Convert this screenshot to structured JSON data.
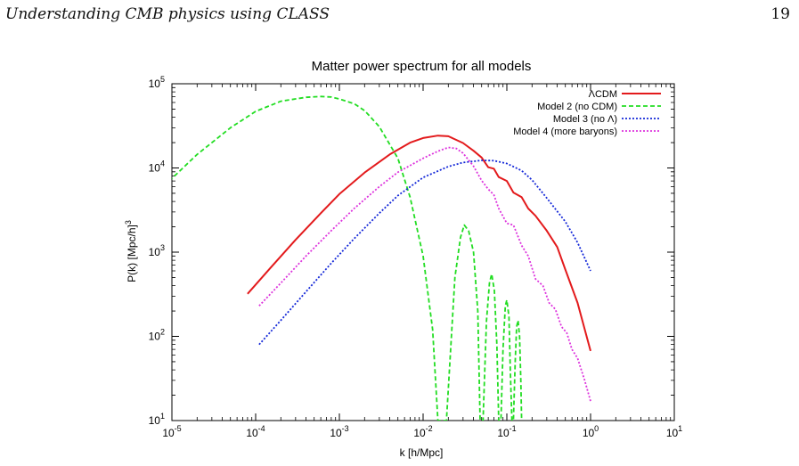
{
  "page": {
    "running_head": "Understanding CMB physics using CLASS",
    "page_number": "19"
  },
  "chart_data": {
    "type": "line",
    "title": "Matter power spectrum for all models",
    "xlabel": "k [h/Mpc]",
    "ylabel": "P(k) [Mpc/h]",
    "ylabel_superscript": "3",
    "xscale": "log",
    "yscale": "log",
    "xlim": [
      1e-05,
      10
    ],
    "ylim": [
      10,
      100000
    ],
    "x_ticks": [
      {
        "value": 1e-05,
        "base": "10",
        "exp": "-5"
      },
      {
        "value": 0.0001,
        "base": "10",
        "exp": "-4"
      },
      {
        "value": 0.001,
        "base": "10",
        "exp": "-3"
      },
      {
        "value": 0.01,
        "base": "10",
        "exp": "-2"
      },
      {
        "value": 0.1,
        "base": "10",
        "exp": "-1"
      },
      {
        "value": 1,
        "base": "10",
        "exp": "0"
      },
      {
        "value": 10,
        "base": "10",
        "exp": "1"
      }
    ],
    "y_ticks": [
      {
        "value": 10,
        "base": "10",
        "exp": "1"
      },
      {
        "value": 100,
        "base": "10",
        "exp": "2"
      },
      {
        "value": 1000,
        "base": "10",
        "exp": "3"
      },
      {
        "value": 10000,
        "base": "10",
        "exp": "4"
      },
      {
        "value": 100000,
        "base": "10",
        "exp": "5"
      }
    ],
    "grid": false,
    "legend_position": "top-right",
    "series": [
      {
        "name": "ΛCDM",
        "color": "#e31a1c",
        "dash": "solid",
        "points": [
          [
            8e-05,
            320
          ],
          [
            0.00015,
            650
          ],
          [
            0.0003,
            1400
          ],
          [
            0.0006,
            2900
          ],
          [
            0.001,
            4900
          ],
          [
            0.002,
            8800
          ],
          [
            0.004,
            14500
          ],
          [
            0.007,
            20000
          ],
          [
            0.01,
            22700
          ],
          [
            0.015,
            24200
          ],
          [
            0.02,
            23800
          ],
          [
            0.03,
            19800
          ],
          [
            0.04,
            16000
          ],
          [
            0.05,
            13300
          ],
          [
            0.06,
            10200
          ],
          [
            0.07,
            9800
          ],
          [
            0.08,
            7800
          ],
          [
            0.1,
            7000
          ],
          [
            0.12,
            5100
          ],
          [
            0.15,
            4500
          ],
          [
            0.18,
            3300
          ],
          [
            0.22,
            2700
          ],
          [
            0.3,
            1800
          ],
          [
            0.4,
            1150
          ],
          [
            0.5,
            620
          ],
          [
            0.7,
            250
          ],
          [
            1.0,
            67
          ]
        ]
      },
      {
        "name": "Model 2 (no CDM)",
        "color": "#22dd22",
        "dash": "dashed",
        "points": [
          [
            5.5e-06,
            3900
          ],
          [
            1e-05,
            7500
          ],
          [
            2e-05,
            14500
          ],
          [
            5e-05,
            30000
          ],
          [
            0.0001,
            47000
          ],
          [
            0.0002,
            62000
          ],
          [
            0.0004,
            69000
          ],
          [
            0.0006,
            70500
          ],
          [
            0.0008,
            69500
          ],
          [
            0.001,
            66000
          ],
          [
            0.0015,
            58000
          ],
          [
            0.002,
            48000
          ],
          [
            0.003,
            31000
          ],
          [
            0.005,
            13000
          ],
          [
            0.007,
            4500
          ],
          [
            0.01,
            900
          ],
          [
            0.013,
            120
          ],
          [
            0.015,
            10
          ],
          [
            0.019,
            10
          ],
          [
            0.024,
            500
          ],
          [
            0.028,
            1500
          ],
          [
            0.031,
            2100
          ],
          [
            0.035,
            1800
          ],
          [
            0.04,
            1000
          ],
          [
            0.045,
            200
          ],
          [
            0.048,
            10
          ],
          [
            0.052,
            10
          ],
          [
            0.057,
            150
          ],
          [
            0.062,
            430
          ],
          [
            0.066,
            550
          ],
          [
            0.071,
            350
          ],
          [
            0.076,
            80
          ],
          [
            0.08,
            10
          ],
          [
            0.085,
            10
          ],
          [
            0.09,
            70
          ],
          [
            0.096,
            230
          ],
          [
            0.1,
            270
          ],
          [
            0.106,
            170
          ],
          [
            0.11,
            40
          ],
          [
            0.115,
            10
          ],
          [
            0.12,
            10
          ],
          [
            0.126,
            50
          ],
          [
            0.131,
            130
          ],
          [
            0.136,
            155
          ],
          [
            0.142,
            100
          ],
          [
            0.147,
            30
          ],
          [
            0.15,
            10
          ]
        ]
      },
      {
        "name": "Model 3 (no Λ)",
        "color": "#1428d8",
        "dash": "dotted",
        "points": [
          [
            0.00011,
            80
          ],
          [
            0.0002,
            155
          ],
          [
            0.0004,
            340
          ],
          [
            0.0008,
            740
          ],
          [
            0.0015,
            1450
          ],
          [
            0.003,
            2900
          ],
          [
            0.005,
            4700
          ],
          [
            0.01,
            7700
          ],
          [
            0.02,
            10400
          ],
          [
            0.03,
            11600
          ],
          [
            0.05,
            12300
          ],
          [
            0.07,
            12200
          ],
          [
            0.1,
            11300
          ],
          [
            0.15,
            9300
          ],
          [
            0.2,
            7200
          ],
          [
            0.3,
            4400
          ],
          [
            0.5,
            2300
          ],
          [
            0.7,
            1300
          ],
          [
            1.0,
            600
          ]
        ]
      },
      {
        "name": "Model 4 (more baryons)",
        "color": "#dd33dd",
        "dash": "dotted",
        "points": [
          [
            0.00011,
            230
          ],
          [
            0.0002,
            430
          ],
          [
            0.0004,
            900
          ],
          [
            0.0008,
            1800
          ],
          [
            0.0015,
            3300
          ],
          [
            0.003,
            6000
          ],
          [
            0.005,
            8900
          ],
          [
            0.01,
            13000
          ],
          [
            0.015,
            15800
          ],
          [
            0.02,
            17500
          ],
          [
            0.025,
            17000
          ],
          [
            0.03,
            15000
          ],
          [
            0.04,
            10500
          ],
          [
            0.05,
            7100
          ],
          [
            0.06,
            5600
          ],
          [
            0.07,
            4800
          ],
          [
            0.08,
            3300
          ],
          [
            0.1,
            2200
          ],
          [
            0.12,
            2100
          ],
          [
            0.15,
            1200
          ],
          [
            0.18,
            900
          ],
          [
            0.22,
            480
          ],
          [
            0.27,
            400
          ],
          [
            0.32,
            250
          ],
          [
            0.38,
            210
          ],
          [
            0.45,
            130
          ],
          [
            0.52,
            110
          ],
          [
            0.6,
            70
          ],
          [
            0.7,
            55
          ],
          [
            0.85,
            30
          ],
          [
            1.0,
            17
          ]
        ]
      }
    ]
  }
}
